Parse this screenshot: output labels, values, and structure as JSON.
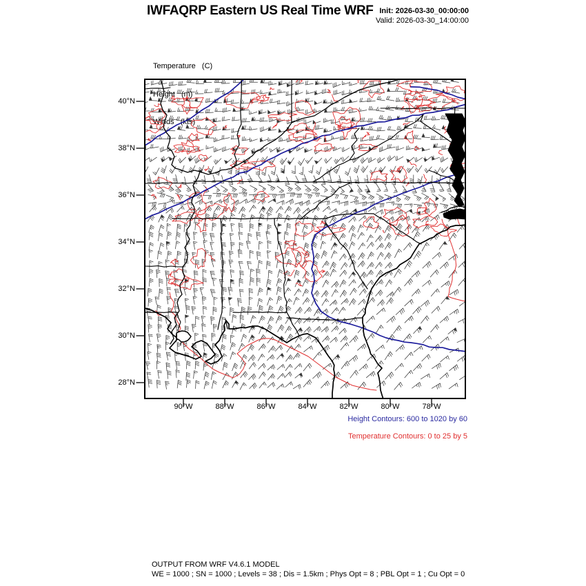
{
  "header": {
    "title": "IWFAQRP Eastern US Real Time WRF",
    "init_line": "Init: 2026-03-30_00:00:00",
    "valid_line": "Valid: 2026-03-30_14:00:00"
  },
  "legend": {
    "temperature": "Temperature   (C)",
    "height": "Height   (m)",
    "winds": "Winds   (kts)"
  },
  "map": {
    "x_tick_labels": [
      "90°W",
      "88°W",
      "86°W",
      "84°W",
      "82°W",
      "80°W",
      "78°W"
    ],
    "y_tick_labels": [
      "40°N",
      "38°N",
      "36°N",
      "34°N",
      "32°N",
      "30°N",
      "28°N"
    ]
  },
  "annotations": {
    "height_contours": "Height Contours: 600 to 1020 by 60",
    "temperature_contours": "Temperature Contours: 0 to 25 by 5"
  },
  "footer": {
    "line1": "OUTPUT FROM WRF V4.6.1 MODEL",
    "line2": "WE = 1000 ; SN = 1000 ; Levels = 38 ; Dis = 1.5km ; Phys Opt = 8 ; PBL Opt = 1 ; Cu Opt = 0"
  },
  "colors": {
    "height_contour": "#1d1d9c",
    "height_text": "#2a2aa0",
    "temperature_contour": "#e02f2f",
    "temperature_text": "#e02f2f",
    "geography": "#000000",
    "wind_barb": "#383838"
  }
}
